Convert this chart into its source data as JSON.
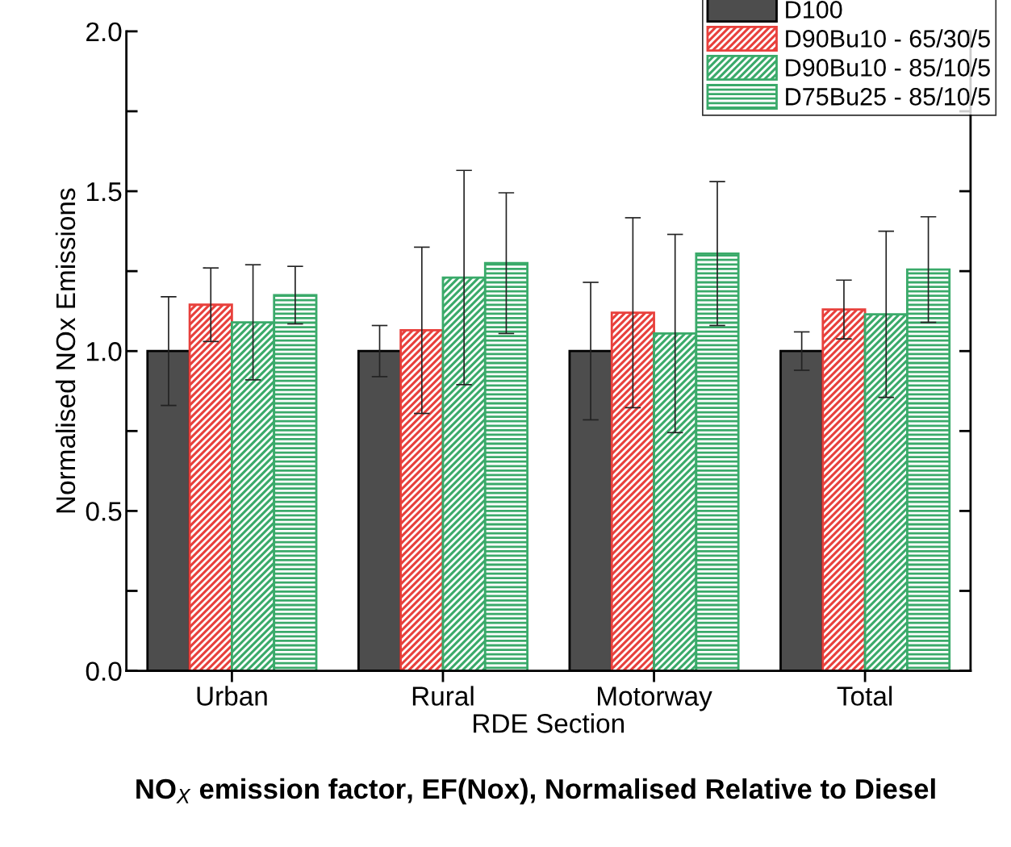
{
  "chart_data": {
    "type": "bar",
    "title": "NO$_{X}$ emission factor, EF(Nox), Normalised Relative to Diesel",
    "xlabel": "RDE Section",
    "ylabel": "Normalised NOx Emissions",
    "categories": [
      "Urban",
      "Rural",
      "Motorway",
      "Total"
    ],
    "series": [
      {
        "name": "D100",
        "color": "#4d4d4d",
        "values": [
          1.0,
          1.0,
          1.0,
          1.0
        ],
        "errors": [
          0.17,
          0.08,
          0.215,
          0.06
        ]
      },
      {
        "name": "D90Bu10 - 65/30/5",
        "color": "#e8403c",
        "values": [
          1.145,
          1.065,
          1.12,
          1.13
        ],
        "errors": [
          0.115,
          0.26,
          0.297,
          0.092
        ]
      },
      {
        "name": "D90Bu10 - 85/10/5",
        "color": "#3aaa6a",
        "values": [
          1.09,
          1.23,
          1.055,
          1.115
        ],
        "errors": [
          0.18,
          0.335,
          0.31,
          0.26
        ]
      },
      {
        "name": "D75Bu25 - 85/10/5",
        "color": "#3aaa6a",
        "values": [
          1.175,
          1.275,
          1.305,
          1.255
        ],
        "errors": [
          0.09,
          0.22,
          0.225,
          0.165
        ]
      }
    ],
    "ylim": [
      0,
      2.0
    ],
    "yticks": [
      {
        "value": 0.0,
        "label": "0.0"
      },
      {
        "value": 0.25,
        "label": null
      },
      {
        "value": 0.5,
        "label": "0.5"
      },
      {
        "value": 0.75,
        "label": null
      },
      {
        "value": 1.0,
        "label": "1.0"
      },
      {
        "value": 1.25,
        "label": null
      },
      {
        "value": 1.5,
        "label": "1.5"
      },
      {
        "value": 1.75,
        "label": null
      },
      {
        "value": 2.0,
        "label": "2.0"
      }
    ],
    "grid": false,
    "legend": "top right"
  }
}
